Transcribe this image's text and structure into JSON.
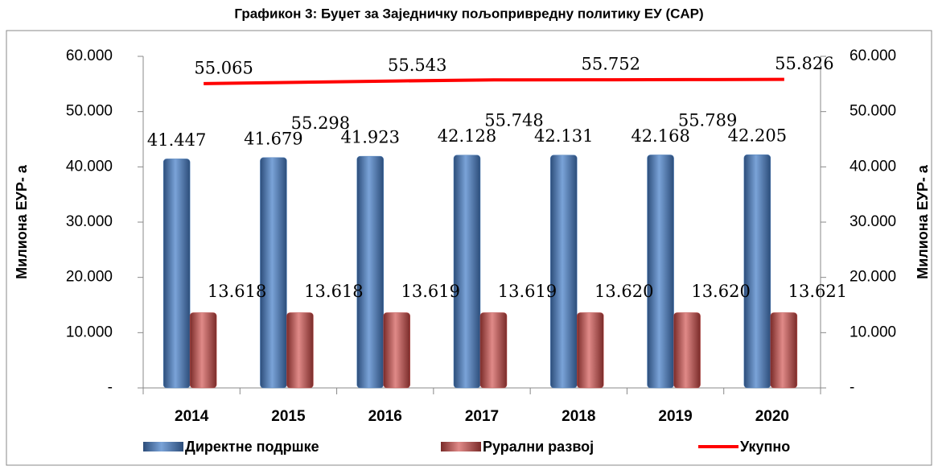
{
  "chart_data": {
    "type": "bar",
    "title": "Графикон 3: Буџет за Заједничку пољопривредну политику ЕУ (CAP)",
    "y_label": "Милиона ЕУР- а",
    "y2_label": "Милиона ЕУР- а",
    "categories": [
      "2014",
      "2015",
      "2016",
      "2017",
      "2018",
      "2019",
      "2020"
    ],
    "series": [
      {
        "name": "Директне подршке",
        "color": "#4f81bd",
        "values": [
          41447,
          41679,
          41923,
          42128,
          42131,
          42168,
          42205
        ],
        "value_labels": [
          "41.447",
          "41.679",
          "41.923",
          "42.128",
          "42.131",
          "42.168",
          "42.205"
        ]
      },
      {
        "name": "Рурални развој",
        "color": "#c0504d",
        "values": [
          13618,
          13618,
          13619,
          13619,
          13620,
          13620,
          13621
        ],
        "value_labels": [
          "13.618",
          "13.618",
          "13.619",
          "13.619",
          "13.620",
          "13.620",
          "13.621"
        ]
      },
      {
        "name": "Укупно",
        "color": "#ff0000",
        "type": "line",
        "axis": "y2",
        "values": [
          55065,
          55298,
          55543,
          55748,
          55752,
          55789,
          55826
        ],
        "value_labels": [
          "55.065",
          "55.298",
          "55.543",
          "55.748",
          "55.752",
          "55.789",
          "55.826"
        ]
      }
    ],
    "ylim": [
      0,
      60000
    ],
    "yticks": [
      {
        "value": 0,
        "label": "-"
      },
      {
        "value": 10000,
        "label": "10.000"
      },
      {
        "value": 20000,
        "label": "20.000"
      },
      {
        "value": 30000,
        "label": "30.000"
      },
      {
        "value": 40000,
        "label": "40.000"
      },
      {
        "value": 50000,
        "label": "50.000"
      },
      {
        "value": 60000,
        "label": "60.000"
      }
    ],
    "y2lim": [
      0,
      60000
    ],
    "y2ticks": [
      {
        "value": 0,
        "label": "-"
      },
      {
        "value": 10000,
        "label": "10.000"
      },
      {
        "value": 20000,
        "label": "20.000"
      },
      {
        "value": 30000,
        "label": "30.000"
      },
      {
        "value": 40000,
        "label": "40.000"
      },
      {
        "value": 50000,
        "label": "50.000"
      },
      {
        "value": 60000,
        "label": "60.000"
      }
    ],
    "legend": "bottom"
  }
}
